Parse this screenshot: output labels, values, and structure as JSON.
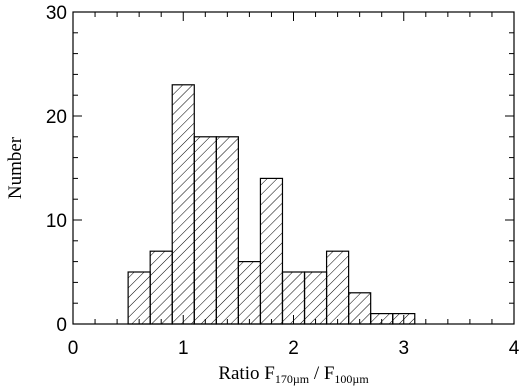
{
  "chart_data": {
    "type": "bar",
    "subtype": "histogram",
    "bin_edges": [
      0.5,
      0.7,
      0.9,
      1.1,
      1.3,
      1.5,
      1.7,
      1.9,
      2.1,
      2.3,
      2.5,
      2.7,
      2.9,
      3.1
    ],
    "values": [
      5,
      7,
      23,
      18,
      18,
      6,
      14,
      5,
      5,
      7,
      3,
      1,
      1
    ],
    "xlim": [
      0,
      4
    ],
    "ylim": [
      0,
      30
    ],
    "xticks": [
      "0",
      "1",
      "2",
      "3",
      "4"
    ],
    "yticks": [
      "0",
      "10",
      "20",
      "30"
    ],
    "xlabel": {
      "prefix": "Ratio F",
      "sub1": "170µm",
      "middle": " / F",
      "sub2": "100µm"
    },
    "ylabel": "Number",
    "bar_fill": "diagonal-hatch",
    "color": "#000000"
  }
}
